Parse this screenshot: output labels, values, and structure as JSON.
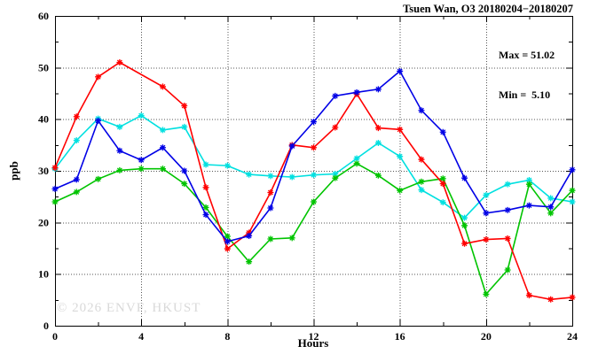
{
  "chart_data": {
    "type": "line",
    "title": "Tsuen Wan, O3 20180204−20180207",
    "stats": {
      "max_label": "Max = 51.02",
      "min_label": "Min =  5.10"
    },
    "xlabel": "Hours",
    "ylabel": "ppb",
    "watermark": "© 2026 ENVF, HKUST",
    "xlim": [
      0,
      24
    ],
    "ylim": [
      0,
      60
    ],
    "xticks": [
      0,
      4,
      8,
      12,
      16,
      20,
      24
    ],
    "xtick_minor_step": 2,
    "yticks": [
      0,
      10,
      20,
      30,
      40,
      50,
      60
    ],
    "ytick_minor_step": 5,
    "grid": {
      "style": "dotted",
      "x_values": [
        4,
        8,
        12,
        16,
        20
      ],
      "y_values": [
        10,
        20,
        30,
        40,
        50
      ]
    },
    "x_hours": [
      0,
      1,
      2,
      3,
      4,
      5,
      6,
      7,
      8,
      9,
      10,
      11,
      12,
      13,
      14,
      15,
      16,
      17,
      18,
      19,
      20,
      21,
      22,
      23,
      24
    ],
    "series": [
      {
        "name": "series-cyan",
        "color": "#00e0e0",
        "values": [
          30.4,
          35.9,
          40.1,
          38.5,
          40.7,
          37.9,
          38.5,
          31.2,
          31.0,
          29.3,
          29.0,
          28.8,
          29.2,
          29.4,
          32.4,
          35.4,
          32.8,
          26.3,
          23.9,
          20.9,
          25.3,
          27.4,
          28.2,
          24.7,
          24.0
        ]
      },
      {
        "name": "series-green",
        "color": "#00c400",
        "values": [
          24.0,
          25.9,
          28.4,
          30.1,
          30.4,
          30.4,
          27.5,
          22.9,
          17.3,
          12.4,
          16.8,
          17.0,
          24.0,
          28.6,
          31.4,
          29.1,
          26.2,
          27.9,
          28.5,
          19.4,
          6.1,
          10.8,
          27.4,
          21.8,
          26.2
        ]
      },
      {
        "name": "series-red",
        "color": "#ff0000",
        "values": [
          30.6,
          40.5,
          48.2,
          51.0,
          null,
          46.3,
          42.6,
          26.8,
          14.9,
          18.0,
          25.8,
          35.0,
          34.5,
          38.4,
          44.9,
          38.3,
          38.0,
          32.2,
          27.5,
          15.9,
          16.7,
          16.9,
          5.9,
          5.1,
          5.5
        ]
      },
      {
        "name": "series-blue",
        "color": "#0000e6",
        "values": [
          26.5,
          28.3,
          39.7,
          33.9,
          32.1,
          34.5,
          30.0,
          21.5,
          16.3,
          17.4,
          22.8,
          34.8,
          39.5,
          44.5,
          45.2,
          45.8,
          49.3,
          41.7,
          37.5,
          28.6,
          21.8,
          22.4,
          23.3,
          23.0,
          30.2
        ]
      }
    ]
  }
}
